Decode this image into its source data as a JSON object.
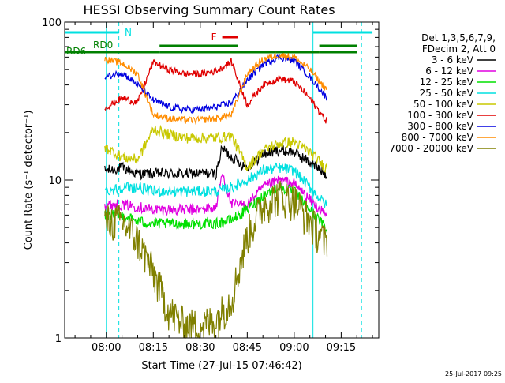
{
  "chart_data": {
    "type": "line",
    "title": "HESSI Observing Summary Count Rates",
    "xlabel": "Start Time (27-Jul-15 07:46:42)",
    "ylabel": "Count Rate (s⁻¹ detector⁻¹)",
    "y_scale": "log",
    "ylim": [
      1,
      100
    ],
    "xlim": [
      "07:46:42",
      "09:27:00"
    ],
    "x_ticks": [
      "08:00",
      "08:15",
      "08:30",
      "08:45",
      "09:00",
      "09:15"
    ],
    "y_ticks": [
      "1",
      "10",
      "100"
    ],
    "legend_header": [
      "Det 1,3,5,6,7,9,",
      "FDecim 2, Att 0"
    ],
    "legend_position": "right",
    "footer": "25-Jul-2017 09:25",
    "flag_labels": {
      "N": "N",
      "F": "F",
      "RD0": "RD0",
      "RD6": "RD6"
    },
    "flags": {
      "night": [
        [
          "07:46:42",
          "08:04:00"
        ],
        [
          "09:06:00",
          "09:25:00"
        ]
      ],
      "rd0": [
        [
          "08:17:00",
          "08:42:00"
        ],
        [
          "09:08:00",
          "09:20:00"
        ]
      ],
      "rd6": [
        [
          "07:46:42",
          "08:17:00"
        ],
        [
          "08:17:00",
          "09:08:00"
        ],
        [
          "09:08:00",
          "09:20:00"
        ]
      ],
      "flare": [
        [
          "08:37:00",
          "08:42:00"
        ]
      ],
      "night_dashed": [
        "08:04:00",
        "09:21:30"
      ],
      "saa_solid": [
        "08:00:00",
        "09:06:00"
      ]
    },
    "series": [
      {
        "name": "3 - 6 keV",
        "color": "#000000",
        "x": [
          "08:00",
          "08:05",
          "08:10",
          "08:15",
          "08:20",
          "08:25",
          "08:30",
          "08:35",
          "08:37",
          "08:40",
          "08:45",
          "08:50",
          "08:55",
          "09:00",
          "09:05",
          "09:10"
        ],
        "values": [
          11.5,
          12,
          11,
          11,
          11,
          11,
          11,
          11,
          16,
          14,
          12,
          14.5,
          15.5,
          15,
          13,
          11
        ]
      },
      {
        "name": "6 - 12 keV",
        "color": "#e000e0",
        "x": [
          "08:00",
          "08:05",
          "08:10",
          "08:15",
          "08:20",
          "08:25",
          "08:30",
          "08:35",
          "08:37",
          "08:40",
          "08:45",
          "08:50",
          "08:55",
          "09:00",
          "09:05",
          "09:10"
        ],
        "values": [
          7,
          7,
          6.8,
          6.5,
          6.5,
          6.5,
          6.5,
          6.7,
          11,
          7,
          7,
          9,
          10,
          9.5,
          7.5,
          6
        ]
      },
      {
        "name": "12 - 25 keV",
        "color": "#00e000",
        "x": [
          "08:00",
          "08:05",
          "08:10",
          "08:15",
          "08:20",
          "08:25",
          "08:30",
          "08:35",
          "08:40",
          "08:45",
          "08:50",
          "08:55",
          "09:00",
          "09:05",
          "09:10"
        ],
        "values": [
          6,
          6,
          5.5,
          5.3,
          5.3,
          5.3,
          5.3,
          5.3,
          5.6,
          6.5,
          8,
          9,
          8.5,
          6.5,
          5
        ]
      },
      {
        "name": "25 - 50 keV",
        "color": "#00e0e0",
        "x": [
          "08:00",
          "08:05",
          "08:10",
          "08:15",
          "08:20",
          "08:25",
          "08:30",
          "08:35",
          "08:40",
          "08:45",
          "08:50",
          "08:55",
          "09:00",
          "09:05",
          "09:10"
        ],
        "values": [
          8.5,
          9,
          9,
          8.5,
          8.5,
          8.5,
          8.5,
          8.5,
          9,
          10,
          11.5,
          12,
          11.5,
          9,
          7
        ]
      },
      {
        "name": "50 - 100 keV",
        "color": "#c8c800",
        "x": [
          "08:00",
          "08:05",
          "08:10",
          "08:15",
          "08:20",
          "08:25",
          "08:30",
          "08:35",
          "08:40",
          "08:45",
          "08:50",
          "08:55",
          "09:00",
          "09:05",
          "09:10"
        ],
        "values": [
          16,
          14,
          13.5,
          21,
          19.5,
          18.5,
          18.5,
          18.5,
          19,
          12,
          15.5,
          17,
          17.5,
          15,
          12
        ]
      },
      {
        "name": "100 - 300 keV",
        "color": "#e00000",
        "x": [
          "08:00",
          "08:05",
          "08:10",
          "08:15",
          "08:20",
          "08:25",
          "08:30",
          "08:35",
          "08:40",
          "08:45",
          "08:50",
          "08:55",
          "09:00",
          "09:05",
          "09:10"
        ],
        "values": [
          29,
          33,
          31,
          56,
          50,
          47,
          47,
          49,
          56,
          30,
          40,
          44,
          42,
          33,
          24
        ]
      },
      {
        "name": "300 - 800 keV",
        "color": "#0000e0",
        "x": [
          "08:00",
          "08:05",
          "08:10",
          "08:15",
          "08:20",
          "08:25",
          "08:30",
          "08:35",
          "08:40",
          "08:45",
          "08:50",
          "08:55",
          "09:00",
          "09:05",
          "09:10"
        ],
        "values": [
          45,
          48,
          40,
          32,
          29,
          28,
          28,
          29,
          31,
          43,
          54,
          60,
          57,
          45,
          34
        ]
      },
      {
        "name": "800 - 7000 keV",
        "color": "#ff8c00",
        "x": [
          "08:00",
          "08:05",
          "08:10",
          "08:15",
          "08:20",
          "08:25",
          "08:30",
          "08:35",
          "08:40",
          "08:45",
          "08:50",
          "08:55",
          "09:00",
          "09:05",
          "09:10"
        ],
        "values": [
          58,
          55,
          47,
          26,
          24.5,
          24,
          24,
          24.5,
          26,
          47,
          58,
          62,
          60,
          50,
          38
        ]
      },
      {
        "name": "7000 - 20000 keV",
        "color": "#808000",
        "x": [
          "08:00",
          "08:05",
          "08:10",
          "08:15",
          "08:20",
          "08:25",
          "08:30",
          "08:35",
          "08:40",
          "08:45",
          "08:50",
          "08:55",
          "09:00",
          "09:05",
          "09:10"
        ],
        "values": [
          5.5,
          5.5,
          4.2,
          2.6,
          1.5,
          1.2,
          1.2,
          1.3,
          1.8,
          4.5,
          7,
          8,
          7.5,
          5.5,
          4
        ]
      }
    ]
  }
}
